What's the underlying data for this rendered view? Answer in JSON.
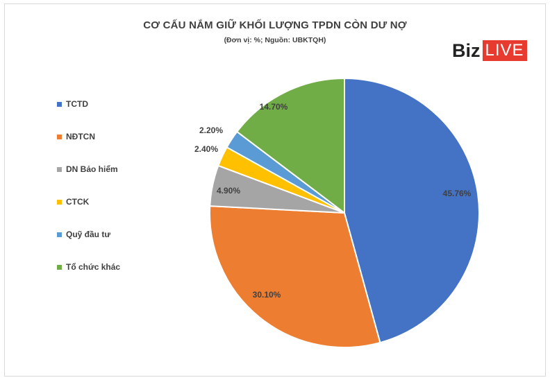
{
  "chart_data": {
    "type": "pie",
    "title": "CƠ CẤU NẮM GIỮ KHỐI LƯỢNG TPDN CÒN DƯ NỢ",
    "subtitle": "(Đơn vị: %; Nguồn: UBKTQH)",
    "categories": [
      "TCTD",
      "NĐTCN",
      "DN Bảo hiểm",
      "CTCK",
      "Quỹ đầu tư",
      "Tổ chức khác"
    ],
    "values": [
      45.76,
      30.1,
      4.9,
      2.4,
      2.2,
      14.7
    ],
    "data_labels": [
      "45.76%",
      "30.10%",
      "4.90%",
      "2.40%",
      "2.20%",
      "14.70%"
    ],
    "colors": [
      "#4472c4",
      "#ed7d31",
      "#a5a5a5",
      "#ffc000",
      "#5b9bd5",
      "#70ad47"
    ],
    "legend_position": "left",
    "start_angle_deg": 0,
    "direction": "clockwise"
  },
  "logo": {
    "part1": "Biz",
    "part2": "LIVE",
    "live_bg": "#e63b2e"
  }
}
